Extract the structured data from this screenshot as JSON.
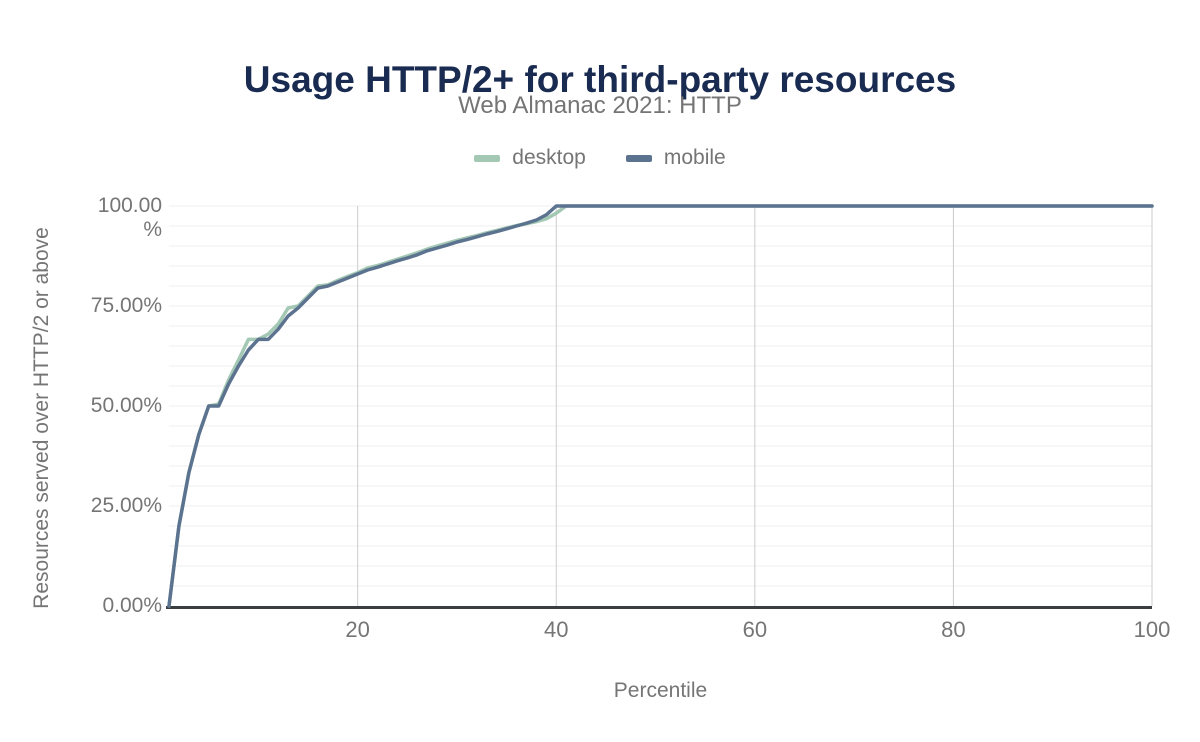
{
  "header": {
    "title": "Usage HTTP/2+ for third-party resources",
    "subtitle": "Web Almanac 2021: HTTP"
  },
  "legend": [
    {
      "label": "desktop",
      "color": "#a3c8b4"
    },
    {
      "label": "mobile",
      "color": "#5c7390"
    }
  ],
  "colors": {
    "title_text": "#1a2b51",
    "muted_text": "#757575",
    "axis_line": "#3b3e40",
    "grid_vertical": "#cccccc",
    "grid_horizontal": "#efefef",
    "desktop_line": "#a3c8b4",
    "mobile_line": "#5c7390",
    "background": "#ffffff"
  },
  "axes": {
    "x": {
      "title": "Percentile",
      "ticks": [
        20,
        40,
        60,
        80,
        100
      ],
      "min": 1,
      "max": 100
    },
    "y": {
      "title": "Resources served over HTTP/2 or above",
      "ticks": [
        {
          "value": 0,
          "label": "0.00%"
        },
        {
          "value": 25,
          "label": "25.00%"
        },
        {
          "value": 50,
          "label": "50.00%"
        },
        {
          "value": 75,
          "label": "75.00%"
        },
        {
          "value": 100,
          "label": "100.00\n%"
        }
      ],
      "minor_step": 5,
      "min": 0,
      "max": 100
    }
  },
  "chart_data": {
    "type": "line",
    "title": "Usage HTTP/2+ for third-party resources",
    "subtitle": "Web Almanac 2021: HTTP",
    "xlabel": "Percentile",
    "ylabel": "Resources served over HTTP/2 or above",
    "xlim": [
      1,
      100
    ],
    "ylim": [
      0,
      100
    ],
    "grid": {
      "x_major": [
        20,
        40,
        60,
        80,
        100
      ],
      "y_minor_step": 5
    },
    "legend_position": "top",
    "x": [
      1,
      2,
      3,
      4,
      5,
      6,
      7,
      8,
      9,
      10,
      11,
      12,
      13,
      14,
      15,
      16,
      17,
      18,
      19,
      20,
      21,
      22,
      23,
      24,
      25,
      26,
      27,
      28,
      29,
      30,
      31,
      32,
      33,
      34,
      35,
      36,
      37,
      38,
      39,
      40,
      41,
      42,
      43,
      44,
      45,
      46,
      47,
      48,
      49,
      50,
      51,
      52,
      53,
      54,
      55,
      56,
      57,
      58,
      59,
      60,
      61,
      62,
      63,
      64,
      65,
      66,
      67,
      68,
      69,
      70,
      71,
      72,
      73,
      74,
      75,
      76,
      77,
      78,
      79,
      80,
      81,
      82,
      83,
      84,
      85,
      86,
      87,
      88,
      89,
      90,
      91,
      92,
      93,
      94,
      95,
      96,
      97,
      98,
      99,
      100
    ],
    "series": [
      {
        "name": "desktop",
        "color": "#a3c8b4",
        "values": [
          0,
          20,
          33.33,
          42.86,
          50,
          50.5,
          56.5,
          61.5,
          66.67,
          66.67,
          68,
          70.5,
          74.5,
          75,
          77.5,
          80,
          80.3,
          81.4,
          82.4,
          83.33,
          84.5,
          85.1,
          85.9,
          86.7,
          87.5,
          88.3,
          89.2,
          90,
          90.7,
          91.4,
          92,
          92.6,
          93.3,
          93.9,
          94.5,
          95.1,
          95.6,
          96.1,
          96.8,
          98.2,
          100,
          100,
          100,
          100,
          100,
          100,
          100,
          100,
          100,
          100,
          100,
          100,
          100,
          100,
          100,
          100,
          100,
          100,
          100,
          100,
          100,
          100,
          100,
          100,
          100,
          100,
          100,
          100,
          100,
          100,
          100,
          100,
          100,
          100,
          100,
          100,
          100,
          100,
          100,
          100,
          100,
          100,
          100,
          100,
          100,
          100,
          100,
          100,
          100,
          100,
          100,
          100,
          100,
          100,
          100,
          100,
          100,
          100,
          100,
          100
        ]
      },
      {
        "name": "mobile",
        "color": "#5c7390",
        "values": [
          0,
          20,
          33.33,
          42.86,
          50,
          50,
          55.5,
          60,
          64,
          66.67,
          66.67,
          69.2,
          72.5,
          74.5,
          77,
          79.5,
          80,
          81,
          82,
          83,
          84,
          84.7,
          85.5,
          86.3,
          87,
          87.8,
          88.8,
          89.5,
          90.2,
          91,
          91.6,
          92.3,
          93,
          93.6,
          94.3,
          95,
          95.7,
          96.5,
          97.8,
          100,
          100,
          100,
          100,
          100,
          100,
          100,
          100,
          100,
          100,
          100,
          100,
          100,
          100,
          100,
          100,
          100,
          100,
          100,
          100,
          100,
          100,
          100,
          100,
          100,
          100,
          100,
          100,
          100,
          100,
          100,
          100,
          100,
          100,
          100,
          100,
          100,
          100,
          100,
          100,
          100,
          100,
          100,
          100,
          100,
          100,
          100,
          100,
          100,
          100,
          100,
          100,
          100,
          100,
          100,
          100,
          100,
          100,
          100,
          100,
          100
        ]
      }
    ]
  }
}
